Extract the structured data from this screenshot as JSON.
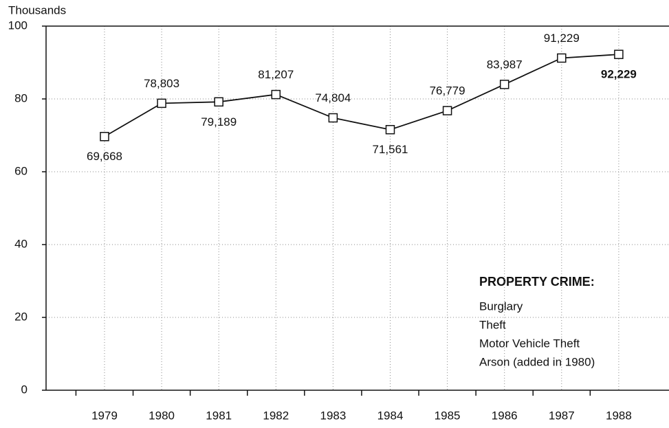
{
  "chart_data": {
    "type": "line",
    "y_axis_label": "Thousands",
    "categories": [
      "1979",
      "1980",
      "1981",
      "1982",
      "1983",
      "1984",
      "1985",
      "1986",
      "1987",
      "1988"
    ],
    "series": [
      {
        "color": "#111111",
        "values": [
          69.668,
          78.803,
          79.189,
          81.207,
          74.804,
          71.561,
          76.779,
          83.987,
          91.229,
          92.229
        ],
        "value_labels": [
          "69,668",
          "78,803",
          "79,189",
          "81,207",
          "74,804",
          "71,561",
          "76,779",
          "83,987",
          "91,229",
          "92,229"
        ]
      }
    ],
    "ylim": [
      0,
      100
    ],
    "yticks": [
      0,
      20,
      40,
      60,
      80,
      100
    ],
    "grid": true,
    "annotation": {
      "heading": "PROPERTY CRIME:",
      "lines": [
        "Burglary",
        "Theft",
        "Motor Vehicle Theft",
        "Arson (added in 1980)"
      ]
    }
  }
}
